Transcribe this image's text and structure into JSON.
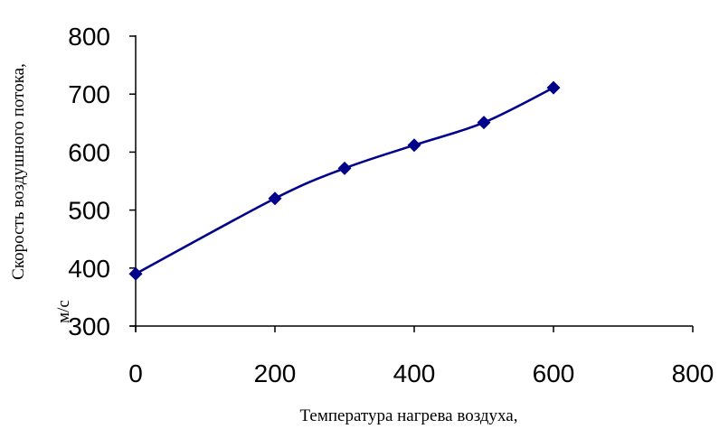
{
  "chart_data": {
    "type": "line",
    "xlabel": "Температура нагрева воздуха,",
    "ylabel_line1": "Скорость воздушного потока,",
    "ylabel_line2": "м/с",
    "x_ticks": [
      "0",
      "200",
      "400",
      "600",
      "800"
    ],
    "y_ticks": [
      "300",
      "400",
      "500",
      "600",
      "700",
      "800"
    ],
    "xlim": [
      0,
      800
    ],
    "ylim": [
      300,
      800
    ],
    "grid": false,
    "series": [
      {
        "x": [
          0,
          200,
          300,
          400,
          500,
          600
        ],
        "y": [
          390,
          520,
          572,
          612,
          651,
          711
        ],
        "color": "#00008b",
        "marker": "diamond",
        "smooth": true
      }
    ]
  }
}
